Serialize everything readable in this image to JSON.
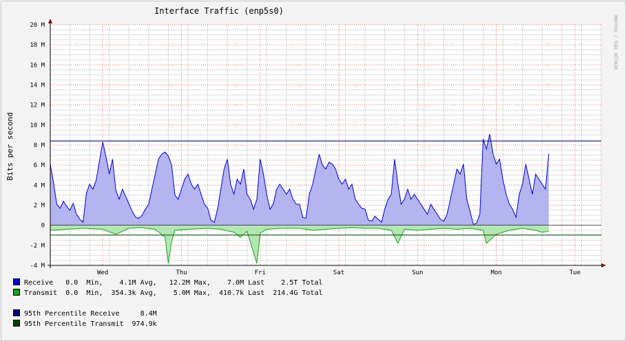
{
  "chart_data": {
    "type": "area",
    "title": "Interface Traffic (enp5s0)",
    "ylabel": "Bits per second",
    "watermark": "RRDTOOL / TOBI OETIKER",
    "ylim": [
      -4000000,
      20000000
    ],
    "y_ticks": [
      {
        "value": 20000000,
        "label": "20 M"
      },
      {
        "value": 18000000,
        "label": "18 M"
      },
      {
        "value": 16000000,
        "label": "16 M"
      },
      {
        "value": 14000000,
        "label": "14 M"
      },
      {
        "value": 12000000,
        "label": "12 M"
      },
      {
        "value": 10000000,
        "label": "10 M"
      },
      {
        "value": 8000000,
        "label": "8 M"
      },
      {
        "value": 6000000,
        "label": "6 M"
      },
      {
        "value": 4000000,
        "label": "4 M"
      },
      {
        "value": 2000000,
        "label": "2 M"
      },
      {
        "value": 0,
        "label": "0"
      },
      {
        "value": -2000000,
        "label": "-2 M"
      },
      {
        "value": -4000000,
        "label": "-4 M"
      }
    ],
    "x_unit": "hours since chart start",
    "xlim": [
      0,
      168
    ],
    "x_ticks": [
      {
        "hour": 16,
        "label": "Wed"
      },
      {
        "hour": 40,
        "label": "Thu"
      },
      {
        "hour": 64,
        "label": "Fri"
      },
      {
        "hour": 88,
        "label": "Sat"
      },
      {
        "hour": 112,
        "label": "Sun"
      },
      {
        "hour": 136,
        "label": "Mon"
      },
      {
        "hour": 160,
        "label": "Tue"
      }
    ],
    "grid": true,
    "series": [
      {
        "name": "Receive",
        "color": "#0000cc",
        "fill": "#b4b4f0",
        "points": [
          [
            0,
            6.1
          ],
          [
            1,
            4.2
          ],
          [
            2,
            2.1
          ],
          [
            3,
            1.7
          ],
          [
            4,
            2.4
          ],
          [
            5,
            1.9
          ],
          [
            6,
            1.5
          ],
          [
            7,
            2.2
          ],
          [
            8,
            1.1
          ],
          [
            9,
            0.6
          ],
          [
            10,
            0.3
          ],
          [
            11,
            3.2
          ],
          [
            12,
            4.1
          ],
          [
            13,
            3.6
          ],
          [
            14,
            4.5
          ],
          [
            15,
            6.4
          ],
          [
            16,
            8.3
          ],
          [
            17,
            6.8
          ],
          [
            18,
            5.1
          ],
          [
            19,
            6.6
          ],
          [
            20,
            3.5
          ],
          [
            21,
            2.6
          ],
          [
            22,
            3.6
          ],
          [
            23,
            2.9
          ],
          [
            24,
            2.1
          ],
          [
            25,
            1.4
          ],
          [
            26,
            0.8
          ],
          [
            27,
            0.7
          ],
          [
            28,
            1.0
          ],
          [
            29,
            1.6
          ],
          [
            30,
            2.1
          ],
          [
            31,
            3.6
          ],
          [
            32,
            5.1
          ],
          [
            33,
            6.6
          ],
          [
            34,
            7.1
          ],
          [
            35,
            7.3
          ],
          [
            36,
            6.9
          ],
          [
            37,
            6.0
          ],
          [
            38,
            3.0
          ],
          [
            39,
            2.6
          ],
          [
            40,
            3.6
          ],
          [
            41,
            4.6
          ],
          [
            42,
            5.1
          ],
          [
            43,
            4.1
          ],
          [
            44,
            3.6
          ],
          [
            45,
            4.1
          ],
          [
            46,
            3.1
          ],
          [
            47,
            2.1
          ],
          [
            48,
            1.7
          ],
          [
            49,
            0.5
          ],
          [
            50,
            0.3
          ],
          [
            51,
            1.6
          ],
          [
            52,
            3.6
          ],
          [
            53,
            5.6
          ],
          [
            54,
            6.6
          ],
          [
            55,
            4.1
          ],
          [
            56,
            3.1
          ],
          [
            57,
            4.6
          ],
          [
            58,
            4.1
          ],
          [
            59,
            5.6
          ],
          [
            60,
            3.1
          ],
          [
            61,
            2.6
          ],
          [
            62,
            1.6
          ],
          [
            63,
            2.6
          ],
          [
            64,
            6.6
          ],
          [
            65,
            5.1
          ],
          [
            66,
            3.1
          ],
          [
            67,
            1.6
          ],
          [
            68,
            2.1
          ],
          [
            69,
            3.6
          ],
          [
            70,
            4.1
          ],
          [
            71,
            3.6
          ],
          [
            72,
            3.1
          ],
          [
            73,
            3.6
          ],
          [
            74,
            2.6
          ],
          [
            75,
            2.1
          ],
          [
            76,
            2.1
          ],
          [
            77,
            0.8
          ],
          [
            78,
            0.7
          ],
          [
            79,
            3.1
          ],
          [
            80,
            4.1
          ],
          [
            81,
            5.6
          ],
          [
            82,
            7.1
          ],
          [
            83,
            6.0
          ],
          [
            84,
            5.6
          ],
          [
            85,
            6.3
          ],
          [
            86,
            6.1
          ],
          [
            87,
            5.6
          ],
          [
            88,
            4.6
          ],
          [
            89,
            4.1
          ],
          [
            90,
            4.6
          ],
          [
            91,
            3.6
          ],
          [
            92,
            4.1
          ],
          [
            93,
            2.6
          ],
          [
            94,
            2.1
          ],
          [
            95,
            1.7
          ],
          [
            96,
            1.6
          ],
          [
            97,
            0.5
          ],
          [
            98,
            0.4
          ],
          [
            99,
            0.9
          ],
          [
            100,
            0.6
          ],
          [
            101,
            0.3
          ],
          [
            102,
            1.6
          ],
          [
            103,
            2.6
          ],
          [
            104,
            3.1
          ],
          [
            105,
            6.6
          ],
          [
            106,
            4.1
          ],
          [
            107,
            2.1
          ],
          [
            108,
            2.6
          ],
          [
            109,
            3.6
          ],
          [
            110,
            2.6
          ],
          [
            111,
            3.1
          ],
          [
            112,
            2.6
          ],
          [
            113,
            2.1
          ],
          [
            114,
            1.6
          ],
          [
            115,
            1.1
          ],
          [
            116,
            2.1
          ],
          [
            117,
            1.6
          ],
          [
            118,
            1.1
          ],
          [
            119,
            0.6
          ],
          [
            120,
            0.4
          ],
          [
            121,
            1.1
          ],
          [
            122,
            2.6
          ],
          [
            123,
            4.1
          ],
          [
            124,
            5.6
          ],
          [
            125,
            5.1
          ],
          [
            126,
            6.1
          ],
          [
            127,
            2.6
          ],
          [
            128,
            1.4
          ],
          [
            129,
            0.1
          ],
          [
            130,
            0.2
          ],
          [
            131,
            1.1
          ],
          [
            132,
            8.6
          ],
          [
            133,
            7.6
          ],
          [
            134,
            9.1
          ],
          [
            135,
            7.1
          ],
          [
            136,
            6.1
          ],
          [
            137,
            6.6
          ],
          [
            138,
            4.6
          ],
          [
            139,
            3.1
          ],
          [
            140,
            2.1
          ],
          [
            141,
            1.6
          ],
          [
            142,
            0.8
          ],
          [
            143,
            3.1
          ],
          [
            144,
            4.1
          ],
          [
            145,
            6.1
          ],
          [
            146,
            4.6
          ],
          [
            147,
            3.1
          ],
          [
            148,
            5.1
          ],
          [
            149,
            4.6
          ],
          [
            150,
            4.1
          ],
          [
            151,
            3.6
          ],
          [
            152,
            7.1
          ]
        ]
      },
      {
        "name": "Transmit",
        "color": "#16a216",
        "fill": "#b4e6b4",
        "points": [
          [
            0,
            -0.5
          ],
          [
            5,
            -0.4
          ],
          [
            10,
            -0.3
          ],
          [
            16,
            -0.4
          ],
          [
            20,
            -0.9
          ],
          [
            24,
            -0.3
          ],
          [
            28,
            -0.25
          ],
          [
            32,
            -0.4
          ],
          [
            35,
            -1.2
          ],
          [
            36,
            -3.8
          ],
          [
            37,
            -1.6
          ],
          [
            38,
            -0.5
          ],
          [
            42,
            -0.4
          ],
          [
            48,
            -0.3
          ],
          [
            52,
            -0.4
          ],
          [
            56,
            -0.7
          ],
          [
            58,
            -1.2
          ],
          [
            60,
            -0.6
          ],
          [
            63,
            -3.8
          ],
          [
            64,
            -0.8
          ],
          [
            66,
            -0.4
          ],
          [
            70,
            -0.3
          ],
          [
            76,
            -0.3
          ],
          [
            80,
            -0.5
          ],
          [
            84,
            -0.4
          ],
          [
            88,
            -0.3
          ],
          [
            92,
            -0.25
          ],
          [
            96,
            -0.3
          ],
          [
            100,
            -0.3
          ],
          [
            104,
            -0.5
          ],
          [
            106,
            -1.8
          ],
          [
            108,
            -0.4
          ],
          [
            112,
            -0.5
          ],
          [
            116,
            -0.4
          ],
          [
            120,
            -0.3
          ],
          [
            124,
            -0.4
          ],
          [
            128,
            -0.3
          ],
          [
            132,
            -0.5
          ],
          [
            133,
            -1.8
          ],
          [
            136,
            -0.9
          ],
          [
            140,
            -0.5
          ],
          [
            144,
            -0.3
          ],
          [
            148,
            -0.5
          ],
          [
            150,
            -0.7
          ],
          [
            152,
            -0.6
          ]
        ]
      }
    ],
    "percentile_lines": [
      {
        "name": "95th Percentile Receive",
        "value": 8400000,
        "color": "#00007f"
      },
      {
        "name": "95th Percentile Transmit",
        "value": -974900,
        "color": "#004400"
      }
    ]
  },
  "legend": {
    "receive": {
      "label": "Receive",
      "color": "#0000cc",
      "stats": "   0.0  Min,    4.1M Avg,   12.2M Max,    7.0M Last    2.5T Total"
    },
    "transmit": {
      "label": "Transmit",
      "color": "#16a216",
      "stats": "  0.0  Min,  354.3k Avg,    5.0M Max,  410.7k Last  214.4G Total"
    },
    "p95_receive": {
      "label": "95th Percentile Receive",
      "color": "#00007f",
      "value": "     8.4M"
    },
    "p95_transmit": {
      "label": "95th Percentile Transmit",
      "color": "#004400",
      "value": "  974.9k"
    }
  }
}
